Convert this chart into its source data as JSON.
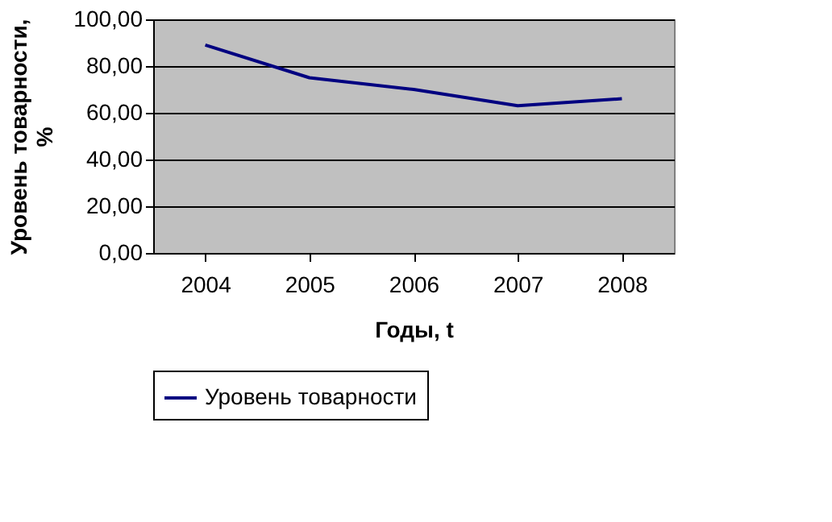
{
  "chart_data": {
    "type": "line",
    "xlabel": "Годы, t",
    "ylabel": "Уровень товарности, %",
    "categories": [
      "2004",
      "2005",
      "2006",
      "2007",
      "2008"
    ],
    "series": [
      {
        "name": "Уровень товарности",
        "color": "#000080",
        "values": [
          89,
          75,
          70,
          63,
          66
        ]
      }
    ],
    "ylim": [
      0,
      100
    ],
    "yticks": [
      {
        "value": 0,
        "label": "0,00"
      },
      {
        "value": 20,
        "label": "20,00"
      },
      {
        "value": 40,
        "label": "40,00"
      },
      {
        "value": 60,
        "label": "60,00"
      },
      {
        "value": 80,
        "label": "80,00"
      },
      {
        "value": 100,
        "label": "100,00"
      }
    ],
    "grid": "y",
    "legend": "bottom",
    "marker": "none",
    "line_style": "solid"
  }
}
